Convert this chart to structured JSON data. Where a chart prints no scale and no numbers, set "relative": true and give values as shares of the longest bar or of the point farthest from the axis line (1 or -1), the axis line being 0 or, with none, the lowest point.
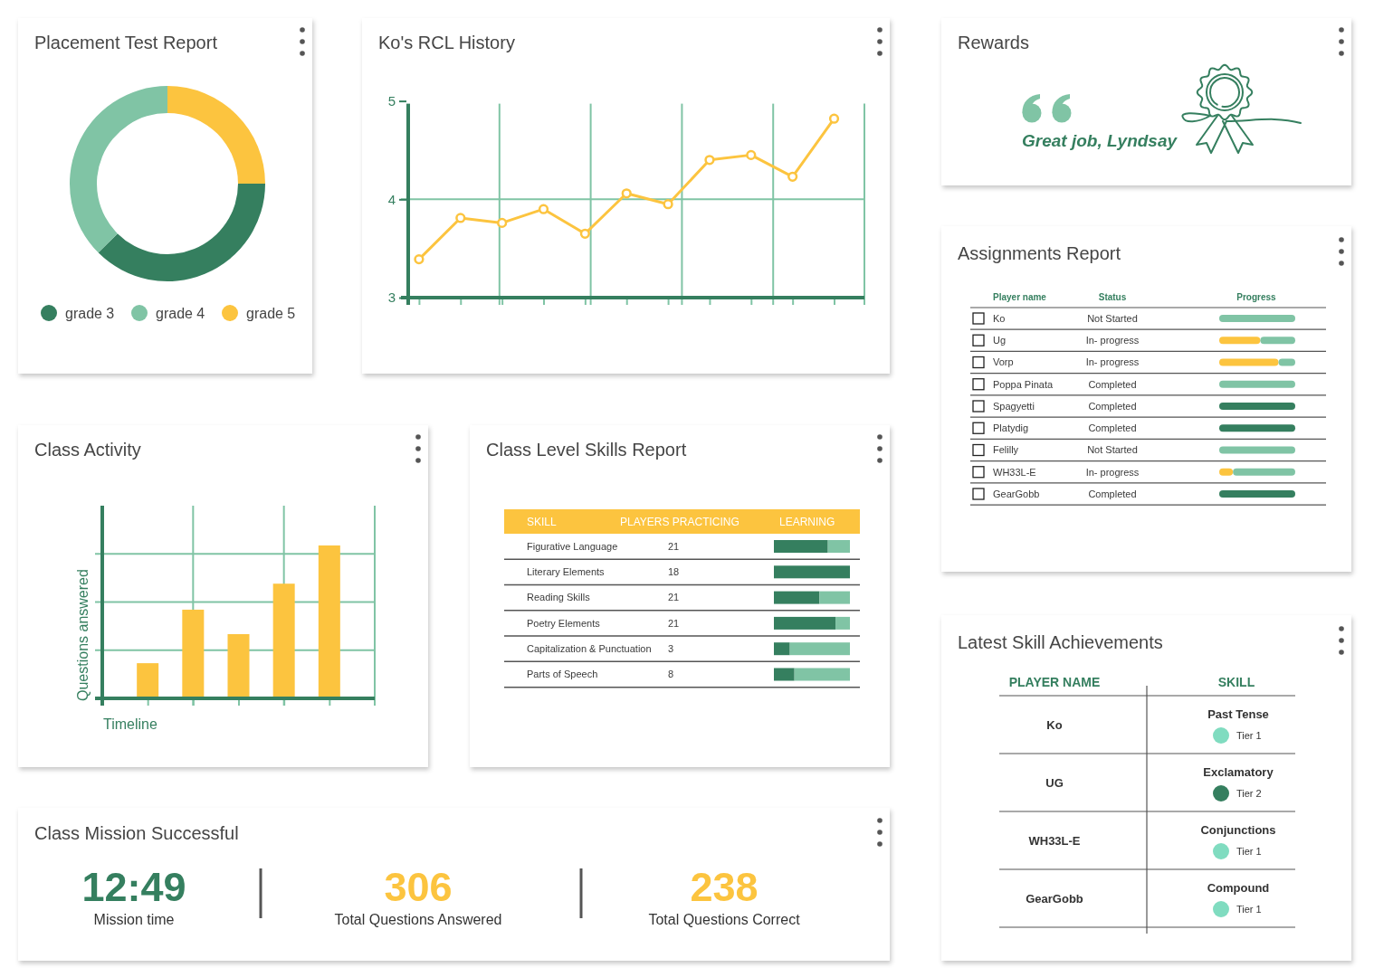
{
  "chart_data": [
    {
      "type": "donut",
      "title": "Placement Test Report",
      "categories": [
        "grade 3",
        "grade 4",
        "grade 5"
      ],
      "values": [
        37.5,
        37.5,
        25
      ],
      "colors": [
        "#357f5f",
        "#80c4a5",
        "#fcc43f"
      ],
      "legend": "bottom"
    },
    {
      "type": "line",
      "title": "Ko's RCL History",
      "categories": [
        null,
        null,
        null,
        null,
        null,
        null,
        null,
        null,
        null,
        null,
        null
      ],
      "series": [
        {
          "color": "#fcc43f",
          "values": [
            3.39,
            3.81,
            3.76,
            3.9,
            3.65,
            4.06,
            3.95,
            4.4,
            4.45,
            4.23,
            4.82
          ]
        }
      ],
      "ylim": [
        3,
        5
      ],
      "yticks": [
        3,
        4,
        5
      ],
      "grid": true,
      "marker": "circle",
      "tick_labels": "y"
    },
    {
      "type": "other",
      "title": "Rewards",
      "annotations": [
        "Great job, Lyndsay"
      ]
    },
    {
      "type": "bar",
      "title": "Assignments Report",
      "orientation": "horizontal",
      "stacked": true,
      "relative": true,
      "categories": [
        "Ko",
        "Ug",
        "Vorp",
        "Poppa Pinata",
        "Spagyetti",
        "Platydig",
        "Felilly",
        "WH33L-E",
        "GearGobb"
      ],
      "series": [
        {
          "color": "#357f5f",
          "values": [
            null,
            null,
            null,
            null,
            1,
            1,
            null,
            null,
            1
          ]
        },
        {
          "color": "#fcc43f",
          "values": [
            null,
            0.54,
            0.78,
            null,
            null,
            null,
            null,
            0.18,
            null
          ]
        },
        {
          "color": "#80c4a5",
          "values": [
            1,
            0.46,
            0.22,
            1,
            null,
            null,
            1,
            0.82,
            null
          ]
        }
      ],
      "ylabel": "Player name",
      "xlabel": "Progress",
      "annotations": [
        "Status",
        "Not Started",
        "In- progress",
        "In- progress",
        "Completed",
        "Completed",
        "Completed",
        "Not Started",
        "In- progress",
        "Completed"
      ]
    },
    {
      "type": "bar",
      "title": "Class Activity",
      "categories": [
        null,
        null,
        null,
        null,
        null
      ],
      "values": [
        0.23,
        0.58,
        0.42,
        0.75,
        1
      ],
      "color": "#fcc43f",
      "relative": true,
      "xlabel": "Timeline",
      "ylabel": "Questions answered",
      "grid": true,
      "tick_labels": false
    },
    {
      "type": "bar",
      "title": "Class Level Skills Report",
      "orientation": "horizontal",
      "stacked": true,
      "relative": true,
      "categories": [
        "Figurative Language",
        "Literary Elements",
        "Reading Skills",
        "Poetry Elements",
        "Capitalization & Punctuation",
        "Parts of Speech"
      ],
      "series": [
        {
          "color": "#357f5f",
          "values": [
            0.71,
            1,
            0.6,
            0.81,
            0.21,
            0.27
          ]
        },
        {
          "color": "#80c4a5",
          "values": [
            0.29,
            null,
            0.4,
            0.19,
            0.79,
            0.73
          ]
        }
      ],
      "ylabel": "SKILL",
      "xlabel": "LEARNING",
      "annotations": [
        "PLAYERS PRACTICING",
        "21",
        "18",
        "21",
        "21",
        "3",
        "8"
      ]
    },
    {
      "type": "other",
      "title": "Latest Skill Achievements",
      "annotations": [
        "PLAYER NAME",
        "SKILL",
        "Ko",
        "Past Tense",
        "Tier 1",
        "UG",
        "Exclamatory",
        "Tier 2",
        "WH33L-E",
        "Conjunctions",
        "Tier 1",
        "GearGobb",
        "Compound",
        "Tier 1"
      ],
      "colors": [
        "#80dcc0",
        "#357f5f",
        "#80dcc0",
        "#80dcc0"
      ]
    },
    {
      "type": "other",
      "title": "Class Mission Successful",
      "annotations": [
        "12:49",
        "Mission time",
        "306",
        "Total Questions Answered",
        "238",
        "Total Questions Correct"
      ],
      "colors": [
        "#357f5f",
        "#fcc43f",
        "#fcc43f"
      ]
    }
  ]
}
